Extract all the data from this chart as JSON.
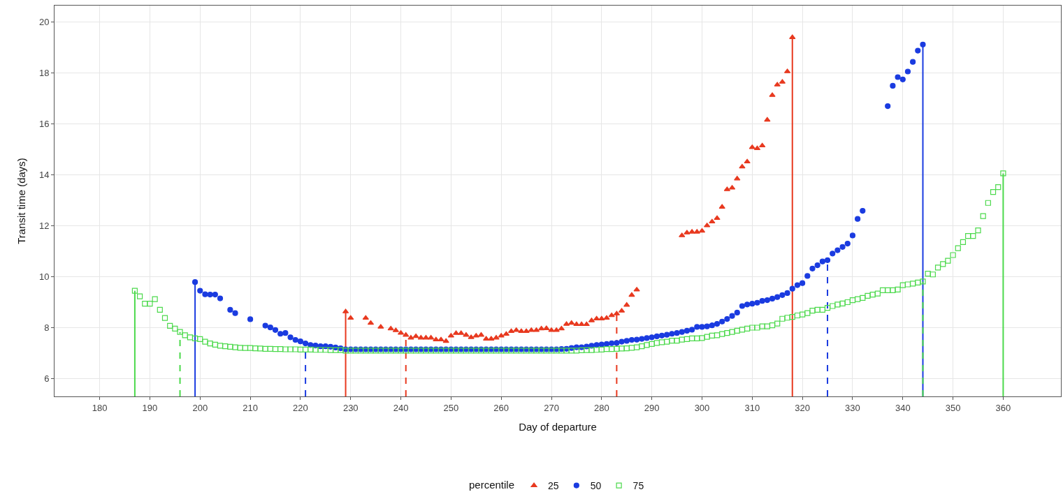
{
  "chart_data": {
    "type": "scatter",
    "xlabel": "Day of departure",
    "ylabel": "Transit time (days)",
    "legend_title": "percentile",
    "xlim": [
      171,
      371.5
    ],
    "ylim": [
      5.3,
      20.65
    ],
    "xticks": [
      180,
      190,
      200,
      210,
      220,
      230,
      240,
      250,
      260,
      270,
      280,
      290,
      300,
      310,
      320,
      330,
      340,
      350,
      360
    ],
    "yticks": [
      6,
      8,
      10,
      12,
      14,
      16,
      18,
      20
    ],
    "grid": true,
    "legend": "bottom",
    "series": [
      {
        "name": "25",
        "color": "#e8391f",
        "marker": "triangle",
        "x": [
          229,
          230,
          233,
          234,
          236,
          238,
          239,
          240,
          241,
          242,
          243,
          244,
          245,
          246,
          247,
          248,
          249,
          250,
          251,
          252,
          253,
          254,
          255,
          256,
          257,
          258,
          259,
          260,
          261,
          262,
          263,
          264,
          265,
          266,
          267,
          268,
          269,
          270,
          271,
          272,
          273,
          274,
          275,
          276,
          277,
          278,
          279,
          280,
          281,
          282,
          283,
          284,
          285,
          286,
          287,
          296,
          297,
          298,
          299,
          300,
          301,
          302,
          303,
          304,
          305,
          306,
          307,
          308,
          309,
          310,
          311,
          312,
          313,
          314,
          315,
          316,
          317,
          318
        ],
        "values": [
          8.63,
          8.38,
          8.38,
          8.18,
          8.03,
          7.96,
          7.89,
          7.79,
          7.71,
          7.6,
          7.66,
          7.6,
          7.6,
          7.6,
          7.53,
          7.53,
          7.47,
          7.68,
          7.78,
          7.78,
          7.71,
          7.62,
          7.68,
          7.71,
          7.56,
          7.56,
          7.6,
          7.68,
          7.75,
          7.86,
          7.9,
          7.86,
          7.86,
          7.9,
          7.9,
          7.96,
          7.97,
          7.9,
          7.9,
          7.96,
          8.14,
          8.18,
          8.13,
          8.13,
          8.13,
          8.28,
          8.35,
          8.35,
          8.38,
          8.48,
          8.55,
          8.66,
          8.89,
          9.28,
          9.49,
          11.62,
          11.73,
          11.76,
          11.76,
          11.8,
          12.01,
          12.16,
          12.3,
          12.74,
          13.43,
          13.49,
          13.85,
          14.32,
          14.52,
          15.08,
          15.04,
          15.15,
          16.16,
          17.13,
          17.54,
          17.65,
          18.06,
          19.4
        ]
      },
      {
        "name": "50",
        "color": "#1a3be0",
        "marker": "circle",
        "x": [
          199,
          200,
          201,
          202,
          203,
          204,
          206,
          207,
          210,
          213,
          214,
          215,
          216,
          217,
          218,
          219,
          220,
          221,
          222,
          223,
          224,
          225,
          226,
          227,
          228,
          229,
          230,
          231,
          232,
          233,
          234,
          235,
          236,
          237,
          238,
          239,
          240,
          241,
          242,
          243,
          244,
          245,
          246,
          247,
          248,
          249,
          250,
          251,
          252,
          253,
          254,
          255,
          256,
          257,
          258,
          259,
          260,
          261,
          262,
          263,
          264,
          265,
          266,
          267,
          268,
          269,
          270,
          271,
          272,
          273,
          274,
          275,
          276,
          277,
          278,
          279,
          280,
          281,
          282,
          283,
          284,
          285,
          286,
          287,
          288,
          289,
          290,
          291,
          292,
          293,
          294,
          295,
          296,
          297,
          298,
          299,
          300,
          301,
          302,
          303,
          304,
          305,
          306,
          307,
          308,
          309,
          310,
          311,
          312,
          313,
          314,
          315,
          316,
          317,
          318,
          319,
          320,
          321,
          322,
          323,
          324,
          325,
          326,
          327,
          328,
          329,
          330,
          331,
          332,
          337,
          338,
          339,
          340,
          341,
          342,
          343,
          344
        ],
        "values": [
          9.79,
          9.45,
          9.31,
          9.3,
          9.3,
          9.15,
          8.7,
          8.57,
          8.33,
          8.08,
          8.01,
          7.91,
          7.76,
          7.79,
          7.62,
          7.52,
          7.46,
          7.38,
          7.32,
          7.3,
          7.27,
          7.27,
          7.25,
          7.22,
          7.19,
          7.15,
          7.15,
          7.15,
          7.15,
          7.15,
          7.15,
          7.15,
          7.15,
          7.15,
          7.15,
          7.15,
          7.15,
          7.15,
          7.15,
          7.15,
          7.15,
          7.15,
          7.15,
          7.15,
          7.15,
          7.15,
          7.15,
          7.15,
          7.15,
          7.15,
          7.15,
          7.15,
          7.15,
          7.15,
          7.15,
          7.15,
          7.15,
          7.15,
          7.15,
          7.15,
          7.15,
          7.15,
          7.15,
          7.15,
          7.15,
          7.15,
          7.15,
          7.15,
          7.16,
          7.17,
          7.2,
          7.23,
          7.23,
          7.26,
          7.29,
          7.32,
          7.34,
          7.36,
          7.39,
          7.4,
          7.45,
          7.48,
          7.52,
          7.53,
          7.56,
          7.59,
          7.62,
          7.66,
          7.69,
          7.72,
          7.76,
          7.79,
          7.83,
          7.88,
          7.92,
          8.03,
          8.03,
          8.05,
          8.09,
          8.15,
          8.24,
          8.34,
          8.46,
          8.59,
          8.85,
          8.91,
          8.94,
          8.98,
          9.05,
          9.08,
          9.14,
          9.2,
          9.28,
          9.36,
          9.53,
          9.67,
          9.75,
          10.03,
          10.32,
          10.45,
          10.6,
          10.65,
          10.91,
          11.04,
          11.17,
          11.3,
          11.62,
          12.27,
          12.59,
          16.7,
          17.5,
          17.84,
          17.75,
          18.06,
          18.44,
          18.88,
          19.12
        ]
      },
      {
        "name": "75",
        "color": "#4cd94c",
        "marker": "square-open",
        "x": [
          187,
          188,
          189,
          190,
          191,
          192,
          193,
          194,
          195,
          196,
          197,
          198,
          199,
          200,
          201,
          202,
          203,
          204,
          205,
          206,
          207,
          208,
          209,
          210,
          211,
          212,
          213,
          214,
          215,
          216,
          217,
          218,
          219,
          220,
          221,
          222,
          223,
          224,
          225,
          226,
          227,
          228,
          229,
          230,
          231,
          232,
          233,
          234,
          235,
          236,
          237,
          238,
          239,
          240,
          241,
          242,
          243,
          244,
          245,
          246,
          247,
          248,
          249,
          250,
          251,
          252,
          253,
          254,
          255,
          256,
          257,
          258,
          259,
          260,
          261,
          262,
          263,
          264,
          265,
          266,
          267,
          268,
          269,
          270,
          271,
          272,
          273,
          274,
          275,
          276,
          277,
          278,
          279,
          280,
          281,
          282,
          283,
          284,
          285,
          286,
          287,
          288,
          289,
          290,
          291,
          292,
          293,
          294,
          295,
          296,
          297,
          298,
          299,
          300,
          301,
          302,
          303,
          304,
          305,
          306,
          307,
          308,
          309,
          310,
          311,
          312,
          313,
          314,
          315,
          316,
          317,
          318,
          319,
          320,
          321,
          322,
          323,
          324,
          325,
          326,
          327,
          328,
          329,
          330,
          331,
          332,
          333,
          334,
          335,
          336,
          337,
          338,
          339,
          340,
          341,
          342,
          343,
          344,
          345,
          346,
          347,
          348,
          349,
          350,
          351,
          352,
          353,
          354,
          355,
          356,
          357,
          358,
          359,
          360
        ],
        "values": [
          9.45,
          9.23,
          8.94,
          8.94,
          9.12,
          8.7,
          8.38,
          8.07,
          7.96,
          7.83,
          7.7,
          7.62,
          7.58,
          7.55,
          7.45,
          7.38,
          7.33,
          7.29,
          7.27,
          7.25,
          7.23,
          7.21,
          7.2,
          7.2,
          7.19,
          7.18,
          7.17,
          7.17,
          7.16,
          7.16,
          7.15,
          7.15,
          7.15,
          7.14,
          7.14,
          7.14,
          7.13,
          7.13,
          7.13,
          7.12,
          7.12,
          7.12,
          7.1,
          7.1,
          7.1,
          7.1,
          7.1,
          7.1,
          7.1,
          7.1,
          7.1,
          7.1,
          7.1,
          7.1,
          7.1,
          7.1,
          7.1,
          7.1,
          7.1,
          7.1,
          7.1,
          7.1,
          7.1,
          7.1,
          7.1,
          7.1,
          7.1,
          7.1,
          7.1,
          7.1,
          7.1,
          7.1,
          7.1,
          7.1,
          7.1,
          7.1,
          7.1,
          7.1,
          7.1,
          7.1,
          7.1,
          7.1,
          7.1,
          7.1,
          7.1,
          7.1,
          7.1,
          7.1,
          7.1,
          7.11,
          7.12,
          7.12,
          7.13,
          7.14,
          7.16,
          7.16,
          7.17,
          7.18,
          7.19,
          7.21,
          7.23,
          7.27,
          7.32,
          7.36,
          7.4,
          7.43,
          7.45,
          7.49,
          7.49,
          7.53,
          7.55,
          7.58,
          7.58,
          7.59,
          7.64,
          7.69,
          7.7,
          7.75,
          7.79,
          7.83,
          7.88,
          7.92,
          7.96,
          8.0,
          8.0,
          8.05,
          8.05,
          8.09,
          8.16,
          8.35,
          8.39,
          8.42,
          8.48,
          8.52,
          8.57,
          8.67,
          8.7,
          8.7,
          8.78,
          8.85,
          8.91,
          8.95,
          9.0,
          9.08,
          9.12,
          9.17,
          9.25,
          9.3,
          9.34,
          9.47,
          9.47,
          9.47,
          9.5,
          9.67,
          9.7,
          9.73,
          9.77,
          9.81,
          10.12,
          10.09,
          10.36,
          10.5,
          10.63,
          10.85,
          11.12,
          11.36,
          11.6,
          11.6,
          11.82,
          12.38,
          12.9,
          13.33,
          13.52,
          14.06
        ]
      }
    ],
    "ref_lines": [
      {
        "axis": "x",
        "value": 187,
        "color": "#4cd94c",
        "line_style": "solid"
      },
      {
        "axis": "x",
        "value": 196,
        "color": "#4cd94c",
        "line_style": "dashed"
      },
      {
        "axis": "x",
        "value": 199,
        "color": "#1a3be0",
        "line_style": "solid"
      },
      {
        "axis": "x",
        "value": 221,
        "color": "#1a3be0",
        "line_style": "dashed"
      },
      {
        "axis": "x",
        "value": 229,
        "color": "#e8391f",
        "line_style": "solid"
      },
      {
        "axis": "x",
        "value": 241,
        "color": "#e8391f",
        "line_style": "dashed"
      },
      {
        "axis": "x",
        "value": 283,
        "color": "#e8391f",
        "line_style": "dashed"
      },
      {
        "axis": "x",
        "value": 318,
        "color": "#e8391f",
        "line_style": "solid"
      },
      {
        "axis": "x",
        "value": 325,
        "color": "#1a3be0",
        "line_style": "dashed"
      },
      {
        "axis": "x",
        "value": 344,
        "color": "#1a3be0",
        "line_style": "solid"
      },
      {
        "axis": "x",
        "value": 344,
        "color": "#4cd94c",
        "line_style": "dashed"
      },
      {
        "axis": "x",
        "value": 360,
        "color": "#4cd94c",
        "line_style": "solid"
      }
    ]
  }
}
